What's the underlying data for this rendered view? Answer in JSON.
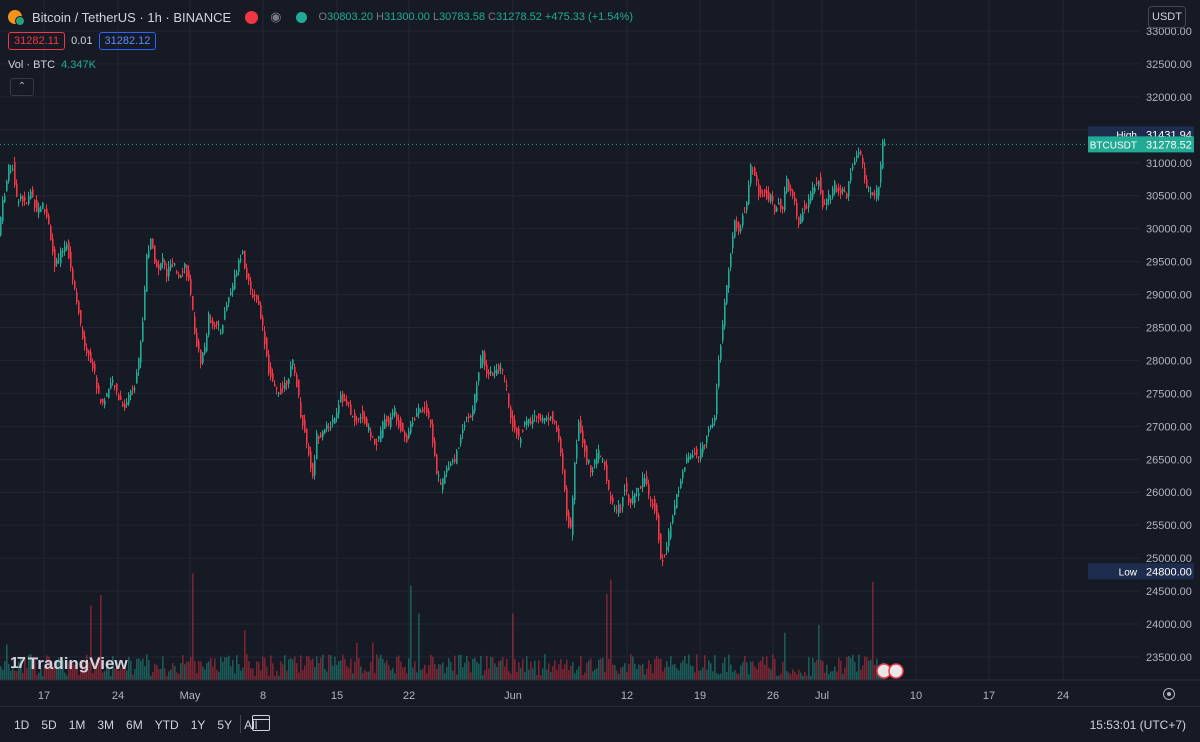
{
  "header": {
    "symbol": "Bitcoin / TetherUS · 1h · BINANCE",
    "open_label": "O",
    "open": "30803.20",
    "high_label": "H",
    "high": "31300.00",
    "low_label": "L",
    "low": "30783.58",
    "close_label": "C",
    "close": "31278.52",
    "change": "+475.33 (+1.54%)",
    "sell_price": "31282.11",
    "spread": "0.01",
    "buy_price": "31282.12",
    "volume_label": "Vol · BTC",
    "volume_value": "4.347K",
    "currency": "USDT"
  },
  "colors": {
    "background": "#161a25",
    "up": "#22ab94",
    "down": "#f23645",
    "grid": "#232632"
  },
  "chart_data": {
    "type": "candlestick",
    "x_ticks": [
      "17",
      "24",
      "May",
      "8",
      "15",
      "22",
      "Jun",
      "12",
      "19",
      "26",
      "Jul",
      "10",
      "17",
      "24"
    ],
    "y_ticks": [
      "33000.00",
      "32500.00",
      "32000.00",
      "31500.00",
      "31000.00",
      "30500.00",
      "30000.00",
      "29500.00",
      "29000.00",
      "28500.00",
      "28000.00",
      "27500.00",
      "27000.00",
      "26500.00",
      "26000.00",
      "25500.00",
      "25000.00",
      "24500.00",
      "24000.00",
      "23500.00"
    ],
    "ylim": [
      23150,
      33470
    ],
    "price_path": [
      [
        0,
        29900
      ],
      [
        3,
        30300
      ],
      [
        10,
        30900
      ],
      [
        14,
        30950
      ],
      [
        18,
        30450
      ],
      [
        22,
        30500
      ],
      [
        27,
        30350
      ],
      [
        32,
        30550
      ],
      [
        38,
        30300
      ],
      [
        44,
        30350
      ],
      [
        50,
        30100
      ],
      [
        56,
        29400
      ],
      [
        62,
        29600
      ],
      [
        68,
        29800
      ],
      [
        74,
        29250
      ],
      [
        78,
        28950
      ],
      [
        84,
        28300
      ],
      [
        90,
        28100
      ],
      [
        96,
        27800
      ],
      [
        100,
        27450
      ],
      [
        104,
        27350
      ],
      [
        108,
        27500
      ],
      [
        114,
        27650
      ],
      [
        120,
        27450
      ],
      [
        126,
        27300
      ],
      [
        132,
        27550
      ],
      [
        136,
        27650
      ],
      [
        140,
        28000
      ],
      [
        144,
        28600
      ],
      [
        148,
        29600
      ],
      [
        152,
        29800
      ],
      [
        156,
        29550
      ],
      [
        160,
        29350
      ],
      [
        164,
        29550
      ],
      [
        168,
        29300
      ],
      [
        172,
        29450
      ],
      [
        176,
        29400
      ],
      [
        180,
        29300
      ],
      [
        186,
        29450
      ],
      [
        190,
        29200
      ],
      [
        194,
        28700
      ],
      [
        198,
        28250
      ],
      [
        202,
        28000
      ],
      [
        206,
        28200
      ],
      [
        210,
        28650
      ],
      [
        216,
        28550
      ],
      [
        222,
        28450
      ],
      [
        228,
        28850
      ],
      [
        232,
        29050
      ],
      [
        236,
        29250
      ],
      [
        240,
        29550
      ],
      [
        244,
        29650
      ],
      [
        248,
        29250
      ],
      [
        252,
        29050
      ],
      [
        258,
        28950
      ],
      [
        262,
        28700
      ],
      [
        266,
        28300
      ],
      [
        270,
        27850
      ],
      [
        276,
        27550
      ],
      [
        282,
        27550
      ],
      [
        288,
        27700
      ],
      [
        294,
        27950
      ],
      [
        298,
        27650
      ],
      [
        302,
        27200
      ],
      [
        306,
        26900
      ],
      [
        310,
        26600
      ],
      [
        314,
        26200
      ],
      [
        318,
        26850
      ],
      [
        322,
        26900
      ],
      [
        326,
        27000
      ],
      [
        330,
        26950
      ],
      [
        334,
        27100
      ],
      [
        338,
        27250
      ],
      [
        342,
        27500
      ],
      [
        346,
        27350
      ],
      [
        350,
        27300
      ],
      [
        356,
        27050
      ],
      [
        362,
        27200
      ],
      [
        368,
        27000
      ],
      [
        374,
        26800
      ],
      [
        378,
        26750
      ],
      [
        382,
        26900
      ],
      [
        386,
        27150
      ],
      [
        390,
        27050
      ],
      [
        396,
        27250
      ],
      [
        400,
        27050
      ],
      [
        404,
        26950
      ],
      [
        408,
        26800
      ],
      [
        412,
        27050
      ],
      [
        418,
        27200
      ],
      [
        422,
        27250
      ],
      [
        426,
        27300
      ],
      [
        430,
        27150
      ],
      [
        434,
        26800
      ],
      [
        438,
        26300
      ],
      [
        442,
        26100
      ],
      [
        446,
        26250
      ],
      [
        450,
        26450
      ],
      [
        456,
        26500
      ],
      [
        460,
        26700
      ],
      [
        464,
        27000
      ],
      [
        468,
        27150
      ],
      [
        472,
        27100
      ],
      [
        476,
        27450
      ],
      [
        480,
        27850
      ],
      [
        484,
        28100
      ],
      [
        488,
        27850
      ],
      [
        492,
        27800
      ],
      [
        496,
        27850
      ],
      [
        500,
        27900
      ],
      [
        504,
        27800
      ],
      [
        508,
        27550
      ],
      [
        512,
        27100
      ],
      [
        516,
        27000
      ],
      [
        520,
        26800
      ],
      [
        526,
        27050
      ],
      [
        532,
        27050
      ],
      [
        538,
        27200
      ],
      [
        544,
        27100
      ],
      [
        548,
        27100
      ],
      [
        552,
        27200
      ],
      [
        556,
        27050
      ],
      [
        560,
        26800
      ],
      [
        564,
        26300
      ],
      [
        568,
        25700
      ],
      [
        572,
        25400
      ],
      [
        576,
        26500
      ],
      [
        580,
        27100
      ],
      [
        584,
        26800
      ],
      [
        588,
        26500
      ],
      [
        592,
        26350
      ],
      [
        596,
        26450
      ],
      [
        600,
        26600
      ],
      [
        606,
        26400
      ],
      [
        610,
        26000
      ],
      [
        614,
        25800
      ],
      [
        618,
        25700
      ],
      [
        622,
        25800
      ],
      [
        626,
        26100
      ],
      [
        630,
        25900
      ],
      [
        634,
        25900
      ],
      [
        638,
        26000
      ],
      [
        642,
        26100
      ],
      [
        646,
        26250
      ],
      [
        650,
        25950
      ],
      [
        654,
        25850
      ],
      [
        658,
        25650
      ],
      [
        662,
        24950
      ],
      [
        666,
        25050
      ],
      [
        670,
        25350
      ],
      [
        674,
        25600
      ],
      [
        678,
        25950
      ],
      [
        682,
        26200
      ],
      [
        686,
        26400
      ],
      [
        690,
        26550
      ],
      [
        696,
        26600
      ],
      [
        700,
        26500
      ],
      [
        704,
        26700
      ],
      [
        708,
        26850
      ],
      [
        712,
        27050
      ],
      [
        716,
        27150
      ],
      [
        720,
        28000
      ],
      [
        724,
        28550
      ],
      [
        728,
        29100
      ],
      [
        732,
        29650
      ],
      [
        736,
        30150
      ],
      [
        740,
        29900
      ],
      [
        744,
        30200
      ],
      [
        748,
        30350
      ],
      [
        752,
        30950
      ],
      [
        756,
        30800
      ],
      [
        760,
        30550
      ],
      [
        764,
        30550
      ],
      [
        768,
        30500
      ],
      [
        772,
        30450
      ],
      [
        776,
        30300
      ],
      [
        780,
        30400
      ],
      [
        784,
        30300
      ],
      [
        788,
        30700
      ],
      [
        792,
        30550
      ],
      [
        796,
        30350
      ],
      [
        800,
        30050
      ],
      [
        804,
        30300
      ],
      [
        808,
        30350
      ],
      [
        812,
        30500
      ],
      [
        816,
        30650
      ],
      [
        820,
        30750
      ],
      [
        824,
        30350
      ],
      [
        828,
        30500
      ],
      [
        832,
        30500
      ],
      [
        836,
        30650
      ],
      [
        840,
        30600
      ],
      [
        844,
        30550
      ],
      [
        848,
        30500
      ],
      [
        852,
        30900
      ],
      [
        856,
        31050
      ],
      [
        860,
        31200
      ],
      [
        864,
        30950
      ],
      [
        868,
        30650
      ],
      [
        872,
        30500
      ],
      [
        876,
        30450
      ],
      [
        880,
        30650
      ],
      [
        884,
        31278
      ]
    ],
    "high": {
      "label": "High",
      "value": "31431.94"
    },
    "last": {
      "label": "BTCUSDT",
      "value": "31278.52"
    },
    "low": {
      "label": "Low",
      "value": "24800.00"
    },
    "volume_series": "BTC volume histogram (bottom overlay)"
  },
  "toolbar": {
    "timeframes": [
      "1D",
      "5D",
      "1M",
      "3M",
      "6M",
      "YTD",
      "1Y",
      "5Y",
      "All"
    ],
    "clock": "15:53:01 (UTC+7)"
  },
  "brand": "TradingView"
}
